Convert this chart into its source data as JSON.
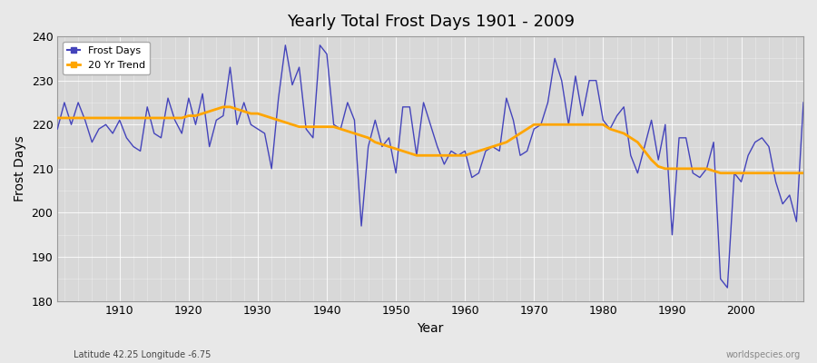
{
  "title": "Yearly Total Frost Days 1901 - 2009",
  "xlabel": "Year",
  "ylabel": "Frost Days",
  "footnote_left": "Latitude 42.25 Longitude -6.75",
  "footnote_right": "worldspecies.org",
  "line_color": "#4444bb",
  "trend_color": "#FFA500",
  "bg_color": "#e8e8e8",
  "plot_bg_color": "#d8d8d8",
  "ylim": [
    180,
    240
  ],
  "xlim": [
    1901,
    2009
  ],
  "years": [
    1901,
    1902,
    1903,
    1904,
    1905,
    1906,
    1907,
    1908,
    1909,
    1910,
    1911,
    1912,
    1913,
    1914,
    1915,
    1916,
    1917,
    1918,
    1919,
    1920,
    1921,
    1922,
    1923,
    1924,
    1925,
    1926,
    1927,
    1928,
    1929,
    1930,
    1931,
    1932,
    1933,
    1934,
    1935,
    1936,
    1937,
    1938,
    1939,
    1940,
    1941,
    1942,
    1943,
    1944,
    1945,
    1946,
    1947,
    1948,
    1949,
    1950,
    1951,
    1952,
    1953,
    1954,
    1955,
    1956,
    1957,
    1958,
    1959,
    1960,
    1961,
    1962,
    1963,
    1964,
    1965,
    1966,
    1967,
    1968,
    1969,
    1970,
    1971,
    1972,
    1973,
    1974,
    1975,
    1976,
    1977,
    1978,
    1979,
    1980,
    1981,
    1982,
    1983,
    1984,
    1985,
    1986,
    1987,
    1988,
    1989,
    1990,
    1991,
    1992,
    1993,
    1994,
    1995,
    1996,
    1997,
    1998,
    1999,
    2000,
    2001,
    2002,
    2003,
    2004,
    2005,
    2006,
    2007,
    2008,
    2009
  ],
  "frost_days": [
    219,
    225,
    220,
    225,
    221,
    216,
    219,
    220,
    218,
    221,
    217,
    215,
    214,
    224,
    218,
    217,
    226,
    221,
    218,
    226,
    220,
    227,
    215,
    221,
    222,
    233,
    220,
    225,
    220,
    219,
    218,
    210,
    226,
    238,
    229,
    233,
    219,
    217,
    238,
    236,
    220,
    219,
    225,
    221,
    197,
    215,
    221,
    215,
    217,
    209,
    224,
    224,
    213,
    225,
    220,
    215,
    211,
    214,
    213,
    214,
    208,
    209,
    214,
    215,
    214,
    226,
    221,
    213,
    214,
    219,
    220,
    225,
    235,
    230,
    220,
    231,
    222,
    230,
    230,
    221,
    219,
    222,
    224,
    213,
    209,
    215,
    221,
    212,
    220,
    195,
    217,
    217,
    209,
    208,
    210,
    216,
    185,
    183,
    209,
    207,
    213,
    216,
    217,
    215,
    207,
    202,
    204,
    198,
    225
  ],
  "trend_values": [
    221.5,
    221.5,
    221.5,
    221.5,
    221.5,
    221.5,
    221.5,
    221.5,
    221.5,
    221.5,
    221.5,
    221.5,
    221.5,
    221.5,
    221.5,
    221.5,
    221.5,
    221.5,
    221.5,
    222.0,
    222.0,
    222.5,
    223.0,
    223.5,
    224.0,
    224.0,
    223.5,
    223.0,
    222.5,
    222.5,
    222.0,
    221.5,
    221.0,
    220.5,
    220.0,
    219.5,
    219.5,
    219.5,
    219.5,
    219.5,
    219.5,
    219.0,
    218.5,
    218.0,
    217.5,
    217.0,
    216.0,
    215.5,
    215.0,
    214.5,
    214.0,
    213.5,
    213.0,
    213.0,
    213.0,
    213.0,
    213.0,
    213.0,
    213.0,
    213.0,
    213.5,
    214.0,
    214.5,
    215.0,
    215.5,
    216.0,
    217.0,
    218.0,
    219.0,
    220.0,
    220.0,
    220.0,
    220.0,
    220.0,
    220.0,
    220.0,
    220.0,
    220.0,
    220.0,
    220.0,
    219.0,
    218.5,
    218.0,
    217.0,
    216.0,
    214.0,
    212.0,
    210.5,
    210.0,
    210.0,
    210.0,
    210.0,
    210.0,
    210.0,
    210.0,
    209.5,
    209.0,
    209.0,
    209.0,
    209.0,
    209.0,
    209.0,
    209.0,
    209.0,
    209.0,
    209.0,
    209.0,
    209.0,
    209.0
  ]
}
